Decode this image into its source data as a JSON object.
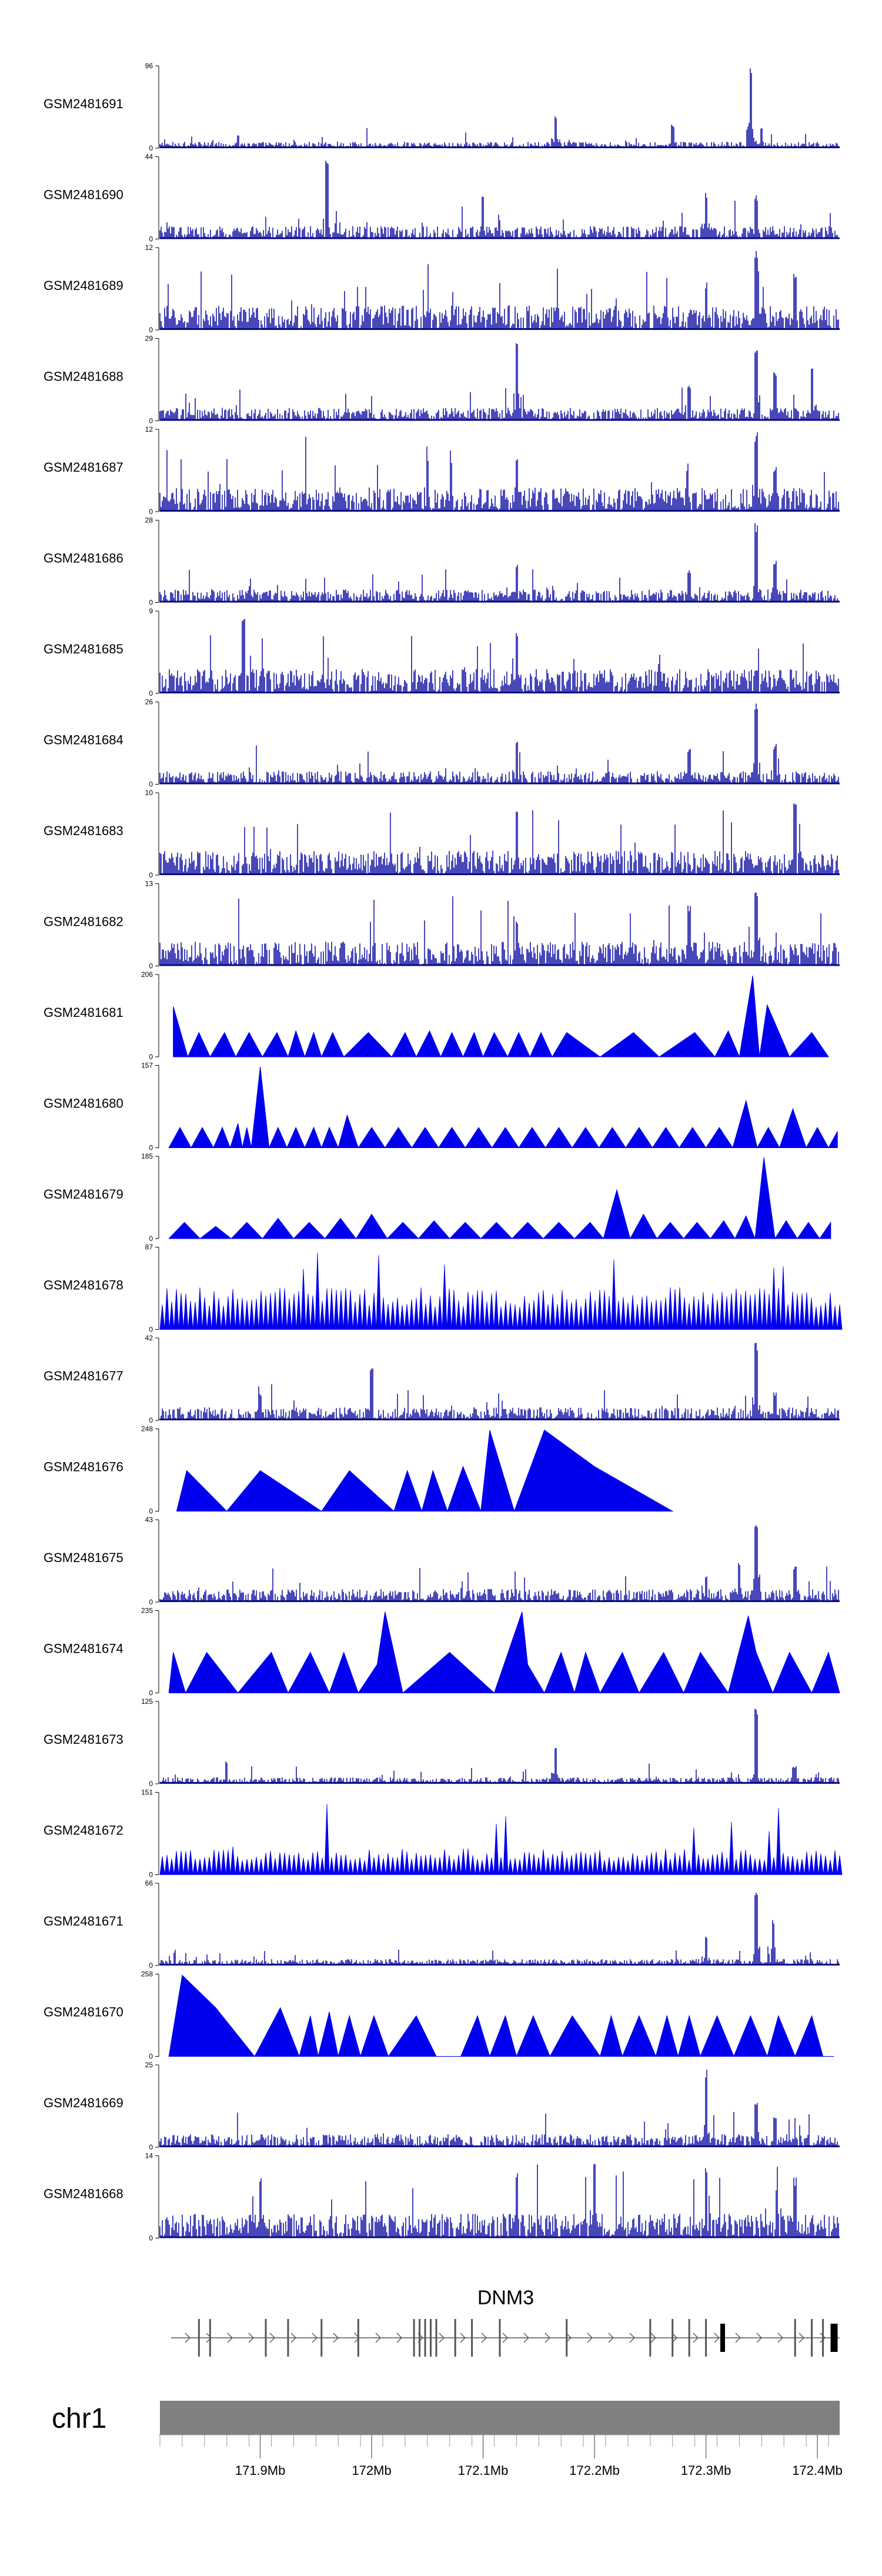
{
  "chart_data": {
    "type": "area",
    "title": "",
    "genome": {
      "chromosome": "chr1",
      "region_mb": [
        171.81,
        172.42
      ],
      "axis_ticks_mb": [
        171.9,
        172.0,
        172.1,
        172.2,
        172.3,
        172.4
      ],
      "axis_tick_labels": [
        "171.9Mb",
        "172Mb",
        "172.1Mb",
        "172.2Mb",
        "172.3Mb",
        "172.4Mb"
      ]
    },
    "gene": {
      "name": "DNM3",
      "strand": "+",
      "start_mb": 171.82,
      "end_mb": 172.42,
      "exons_mb": [
        171.845,
        171.855,
        171.905,
        171.925,
        171.955,
        171.988,
        172.038,
        172.043,
        172.048,
        172.053,
        172.058,
        172.075,
        172.09,
        172.115,
        172.175,
        172.25,
        172.27,
        172.285,
        172.3,
        172.315,
        172.38,
        172.395,
        172.405,
        172.415
      ]
    },
    "series": [
      {
        "name": "GSM2481691",
        "ymax": 96,
        "style": "signal",
        "peaks_mb": [
          [
            171.88,
            0.18
          ],
          [
            172.165,
            0.4
          ],
          [
            172.27,
            0.3
          ],
          [
            172.34,
            1.0
          ],
          [
            172.35,
            0.25
          ]
        ]
      },
      {
        "name": "GSM2481690",
        "ymax": 44,
        "style": "signal",
        "peaks_mb": [
          [
            171.96,
            1.0
          ],
          [
            172.1,
            0.55
          ],
          [
            172.3,
            0.6
          ],
          [
            172.345,
            0.55
          ]
        ]
      },
      {
        "name": "GSM2481689",
        "ymax": 12,
        "style": "signal",
        "peaks_mb": [
          [
            172.345,
            1.0
          ],
          [
            172.3,
            0.6
          ],
          [
            172.38,
            0.75
          ]
        ]
      },
      {
        "name": "GSM2481688",
        "ymax": 29,
        "style": "signal",
        "peaks_mb": [
          [
            172.13,
            1.0
          ],
          [
            172.285,
            0.45
          ],
          [
            172.345,
            0.9
          ],
          [
            172.362,
            0.6
          ],
          [
            172.395,
            0.7
          ]
        ]
      },
      {
        "name": "GSM2481687",
        "ymax": 12,
        "style": "signal",
        "peaks_mb": [
          [
            172.345,
            1.0
          ],
          [
            172.13,
            0.65
          ],
          [
            172.362,
            0.55
          ]
        ]
      },
      {
        "name": "GSM2481686",
        "ymax": 28,
        "style": "signal",
        "peaks_mb": [
          [
            172.13,
            0.5
          ],
          [
            172.285,
            0.4
          ],
          [
            172.345,
            1.0
          ],
          [
            172.362,
            0.55
          ]
        ]
      },
      {
        "name": "GSM2481685",
        "ymax": 9,
        "style": "signal",
        "peaks_mb": [
          [
            171.885,
            1.0
          ],
          [
            172.13,
            0.8
          ]
        ]
      },
      {
        "name": "GSM2481684",
        "ymax": 26,
        "style": "signal",
        "peaks_mb": [
          [
            172.13,
            0.55
          ],
          [
            172.285,
            0.45
          ],
          [
            172.345,
            1.0
          ],
          [
            172.362,
            0.5
          ]
        ]
      },
      {
        "name": "GSM2481683",
        "ymax": 10,
        "style": "signal",
        "peaks_mb": [
          [
            172.38,
            1.0
          ],
          [
            172.13,
            0.8
          ]
        ]
      },
      {
        "name": "GSM2481682",
        "ymax": 13,
        "style": "signal",
        "peaks_mb": [
          [
            172.13,
            0.6
          ],
          [
            172.285,
            0.75
          ],
          [
            172.345,
            1.0
          ]
        ]
      },
      {
        "name": "GSM2481681",
        "ymax": 206,
        "style": "triangles",
        "x_mb": [
          171.822,
          171.835,
          171.845,
          171.855,
          171.868,
          171.878,
          171.89,
          171.902,
          171.915,
          171.925,
          171.932,
          171.94,
          171.948,
          171.955,
          171.965,
          171.975,
          171.997,
          172.018,
          172.03,
          172.04,
          172.052,
          172.062,
          172.072,
          172.082,
          172.092,
          172.1,
          172.11,
          172.122,
          172.132,
          172.142,
          172.152,
          172.162,
          172.175,
          172.205,
          172.235,
          172.258,
          172.29,
          172.308,
          172.32,
          172.33,
          172.342,
          172.348,
          172.355,
          172.375,
          172.395,
          172.41
        ],
        "y": [
          0.62,
          0.0,
          0.3,
          0.0,
          0.3,
          0.0,
          0.3,
          0.0,
          0.3,
          0.0,
          0.32,
          0.0,
          0.3,
          0.0,
          0.3,
          0.0,
          0.3,
          0.0,
          0.3,
          0.0,
          0.32,
          0.0,
          0.3,
          0.0,
          0.3,
          0.0,
          0.3,
          0.0,
          0.3,
          0.0,
          0.3,
          0.0,
          0.3,
          0.0,
          0.3,
          0.0,
          0.3,
          0.0,
          0.32,
          0.0,
          1.0,
          0.0,
          0.64,
          0.0,
          0.3,
          0.0
        ]
      },
      {
        "name": "GSM2481680",
        "ymax": 157,
        "style": "triangles",
        "x_mb": [
          171.818,
          171.828,
          171.838,
          171.848,
          171.858,
          171.866,
          171.873,
          171.88,
          171.884,
          171.888,
          171.892,
          171.9,
          171.908,
          171.916,
          171.924,
          171.932,
          171.94,
          171.948,
          171.955,
          171.962,
          171.97,
          171.978,
          171.988,
          172.0,
          172.012,
          172.024,
          172.036,
          172.048,
          172.06,
          172.072,
          172.084,
          172.096,
          172.108,
          172.12,
          172.132,
          172.144,
          172.156,
          172.168,
          172.18,
          172.192,
          172.204,
          172.216,
          172.228,
          172.24,
          172.252,
          172.264,
          172.276,
          172.288,
          172.3,
          172.312,
          172.324,
          172.336,
          172.346,
          172.356,
          172.366,
          172.378,
          172.39,
          172.4,
          172.41,
          172.418
        ],
        "y": [
          0.0,
          0.25,
          0.0,
          0.25,
          0.0,
          0.25,
          0.0,
          0.3,
          0.0,
          0.25,
          0.0,
          1.0,
          0.0,
          0.25,
          0.0,
          0.25,
          0.0,
          0.25,
          0.0,
          0.25,
          0.0,
          0.4,
          0.0,
          0.25,
          0.0,
          0.25,
          0.0,
          0.25,
          0.0,
          0.25,
          0.0,
          0.25,
          0.0,
          0.25,
          0.0,
          0.25,
          0.0,
          0.25,
          0.0,
          0.25,
          0.0,
          0.25,
          0.0,
          0.25,
          0.0,
          0.25,
          0.0,
          0.25,
          0.0,
          0.25,
          0.0,
          0.58,
          0.0,
          0.25,
          0.0,
          0.48,
          0.0,
          0.25,
          0.0,
          0.2
        ]
      },
      {
        "name": "GSM2481679",
        "ymax": 185,
        "style": "triangles",
        "x_mb": [
          171.818,
          171.832,
          171.846,
          171.86,
          171.874,
          171.888,
          171.902,
          171.916,
          171.93,
          171.944,
          171.958,
          171.972,
          171.986,
          172.0,
          172.014,
          172.028,
          172.042,
          172.056,
          172.07,
          172.084,
          172.098,
          172.112,
          172.126,
          172.14,
          172.154,
          172.168,
          172.182,
          172.196,
          172.208,
          172.22,
          172.232,
          172.244,
          172.256,
          172.268,
          172.28,
          172.292,
          172.304,
          172.316,
          172.326,
          172.336,
          172.344,
          172.352,
          172.362,
          172.372,
          172.382,
          172.392,
          172.402,
          172.412
        ],
        "y": [
          0.0,
          0.2,
          0.0,
          0.15,
          0.0,
          0.2,
          0.0,
          0.25,
          0.0,
          0.2,
          0.0,
          0.25,
          0.0,
          0.3,
          0.0,
          0.2,
          0.0,
          0.22,
          0.0,
          0.2,
          0.0,
          0.2,
          0.0,
          0.2,
          0.0,
          0.2,
          0.0,
          0.2,
          0.0,
          0.6,
          0.0,
          0.3,
          0.0,
          0.2,
          0.0,
          0.2,
          0.0,
          0.22,
          0.0,
          0.28,
          0.0,
          1.0,
          0.0,
          0.22,
          0.0,
          0.2,
          0.0,
          0.2
        ]
      },
      {
        "name": "GSM2481678",
        "ymax": 87,
        "style": "triangles_dense",
        "x_mb": [
          171.818,
          172.418
        ],
        "y": [
          0.4,
          0.7
        ]
      },
      {
        "name": "GSM2481677",
        "ymax": 42,
        "style": "signal",
        "peaks_mb": [
          [
            171.9,
            0.35
          ],
          [
            172.0,
            0.65
          ],
          [
            172.345,
            1.0
          ],
          [
            172.362,
            0.35
          ]
        ]
      },
      {
        "name": "GSM2481676",
        "ymax": 248,
        "style": "triangles",
        "x_mb": [
          171.825,
          171.834,
          171.87,
          171.9,
          171.955,
          171.98,
          172.02,
          172.032,
          172.045,
          172.055,
          172.068,
          172.082,
          172.098,
          172.106,
          172.128,
          172.155,
          172.2,
          172.27
        ],
        "y": [
          0.0,
          0.5,
          0.0,
          0.5,
          0.0,
          0.5,
          0.0,
          0.5,
          0.0,
          0.5,
          0.0,
          0.55,
          0.0,
          1.0,
          0.0,
          1.0,
          0.55,
          0.0
        ]
      },
      {
        "name": "GSM2481675",
        "ymax": 43,
        "style": "signal",
        "peaks_mb": [
          [
            172.345,
            1.0
          ],
          [
            172.33,
            0.5
          ],
          [
            172.38,
            0.45
          ],
          [
            172.3,
            0.35
          ]
        ]
      },
      {
        "name": "GSM2481674",
        "ymax": 235,
        "style": "triangles",
        "x_mb": [
          171.818,
          171.822,
          171.833,
          171.852,
          171.88,
          171.91,
          171.925,
          171.945,
          171.962,
          171.975,
          171.988,
          172.005,
          172.012,
          172.028,
          172.07,
          172.11,
          172.135,
          172.14,
          172.155,
          172.17,
          172.182,
          172.192,
          172.205,
          172.225,
          172.24,
          172.262,
          172.28,
          172.295,
          172.32,
          172.338,
          172.345,
          172.36,
          172.375,
          172.395,
          172.41,
          172.42
        ],
        "y": [
          0.0,
          0.5,
          0.0,
          0.5,
          0.0,
          0.5,
          0.0,
          0.5,
          0.0,
          0.5,
          0.0,
          0.35,
          1.0,
          0.0,
          0.5,
          0.0,
          1.0,
          0.35,
          0.0,
          0.5,
          0.0,
          0.5,
          0.0,
          0.5,
          0.0,
          0.5,
          0.0,
          0.5,
          0.0,
          0.95,
          0.5,
          0.0,
          0.5,
          0.0,
          0.5,
          0.0
        ]
      },
      {
        "name": "GSM2481673",
        "ymax": 125,
        "style": "signal",
        "peaks_mb": [
          [
            172.345,
            1.0
          ],
          [
            172.165,
            0.45
          ],
          [
            172.38,
            0.22
          ],
          [
            171.87,
            0.28
          ]
        ]
      },
      {
        "name": "GSM2481672",
        "ymax": 151,
        "style": "triangles_dense",
        "x_mb": [
          171.818,
          172.418
        ],
        "y": [
          0.25,
          0.3
        ]
      },
      {
        "name": "GSM2481671",
        "ymax": 66,
        "style": "signal",
        "peaks_mb": [
          [
            172.345,
            1.0
          ],
          [
            172.3,
            0.4
          ],
          [
            172.36,
            0.6
          ]
        ]
      },
      {
        "name": "GSM2481670",
        "ymax": 258,
        "style": "triangles",
        "x_mb": [
          171.818,
          171.83,
          171.86,
          171.895,
          171.918,
          171.935,
          171.945,
          171.952,
          171.962,
          171.97,
          171.98,
          171.99,
          172.002,
          172.015,
          172.04,
          172.058,
          172.08,
          172.095,
          172.106,
          172.12,
          172.13,
          172.145,
          172.16,
          172.18,
          172.205,
          172.215,
          172.225,
          172.24,
          172.255,
          172.265,
          172.275,
          172.285,
          172.295,
          172.31,
          172.325,
          172.34,
          172.355,
          172.365,
          172.38,
          172.395,
          172.405,
          172.415
        ],
        "y": [
          0.0,
          1.0,
          0.6,
          0.0,
          0.6,
          0.0,
          0.5,
          0.0,
          0.55,
          0.0,
          0.5,
          0.0,
          0.5,
          0.0,
          0.5,
          0.0,
          0.0,
          0.5,
          0.0,
          0.5,
          0.0,
          0.5,
          0.0,
          0.5,
          0.0,
          0.5,
          0.0,
          0.5,
          0.0,
          0.5,
          0.0,
          0.5,
          0.0,
          0.5,
          0.0,
          0.5,
          0.0,
          0.5,
          0.0,
          0.5,
          0.0,
          0.0
        ]
      },
      {
        "name": "GSM2481669",
        "ymax": 25,
        "style": "signal",
        "peaks_mb": [
          [
            172.3,
            1.0
          ],
          [
            172.345,
            0.55
          ],
          [
            172.362,
            0.4
          ]
        ]
      },
      {
        "name": "GSM2481668",
        "ymax": 14,
        "style": "signal",
        "peaks_mb": [
          [
            172.2,
            1.0
          ],
          [
            172.13,
            0.8
          ],
          [
            171.9,
            0.75
          ],
          [
            172.3,
            0.9
          ],
          [
            172.38,
            0.75
          ]
        ]
      }
    ],
    "xlabel": "",
    "ylabel": ""
  }
}
